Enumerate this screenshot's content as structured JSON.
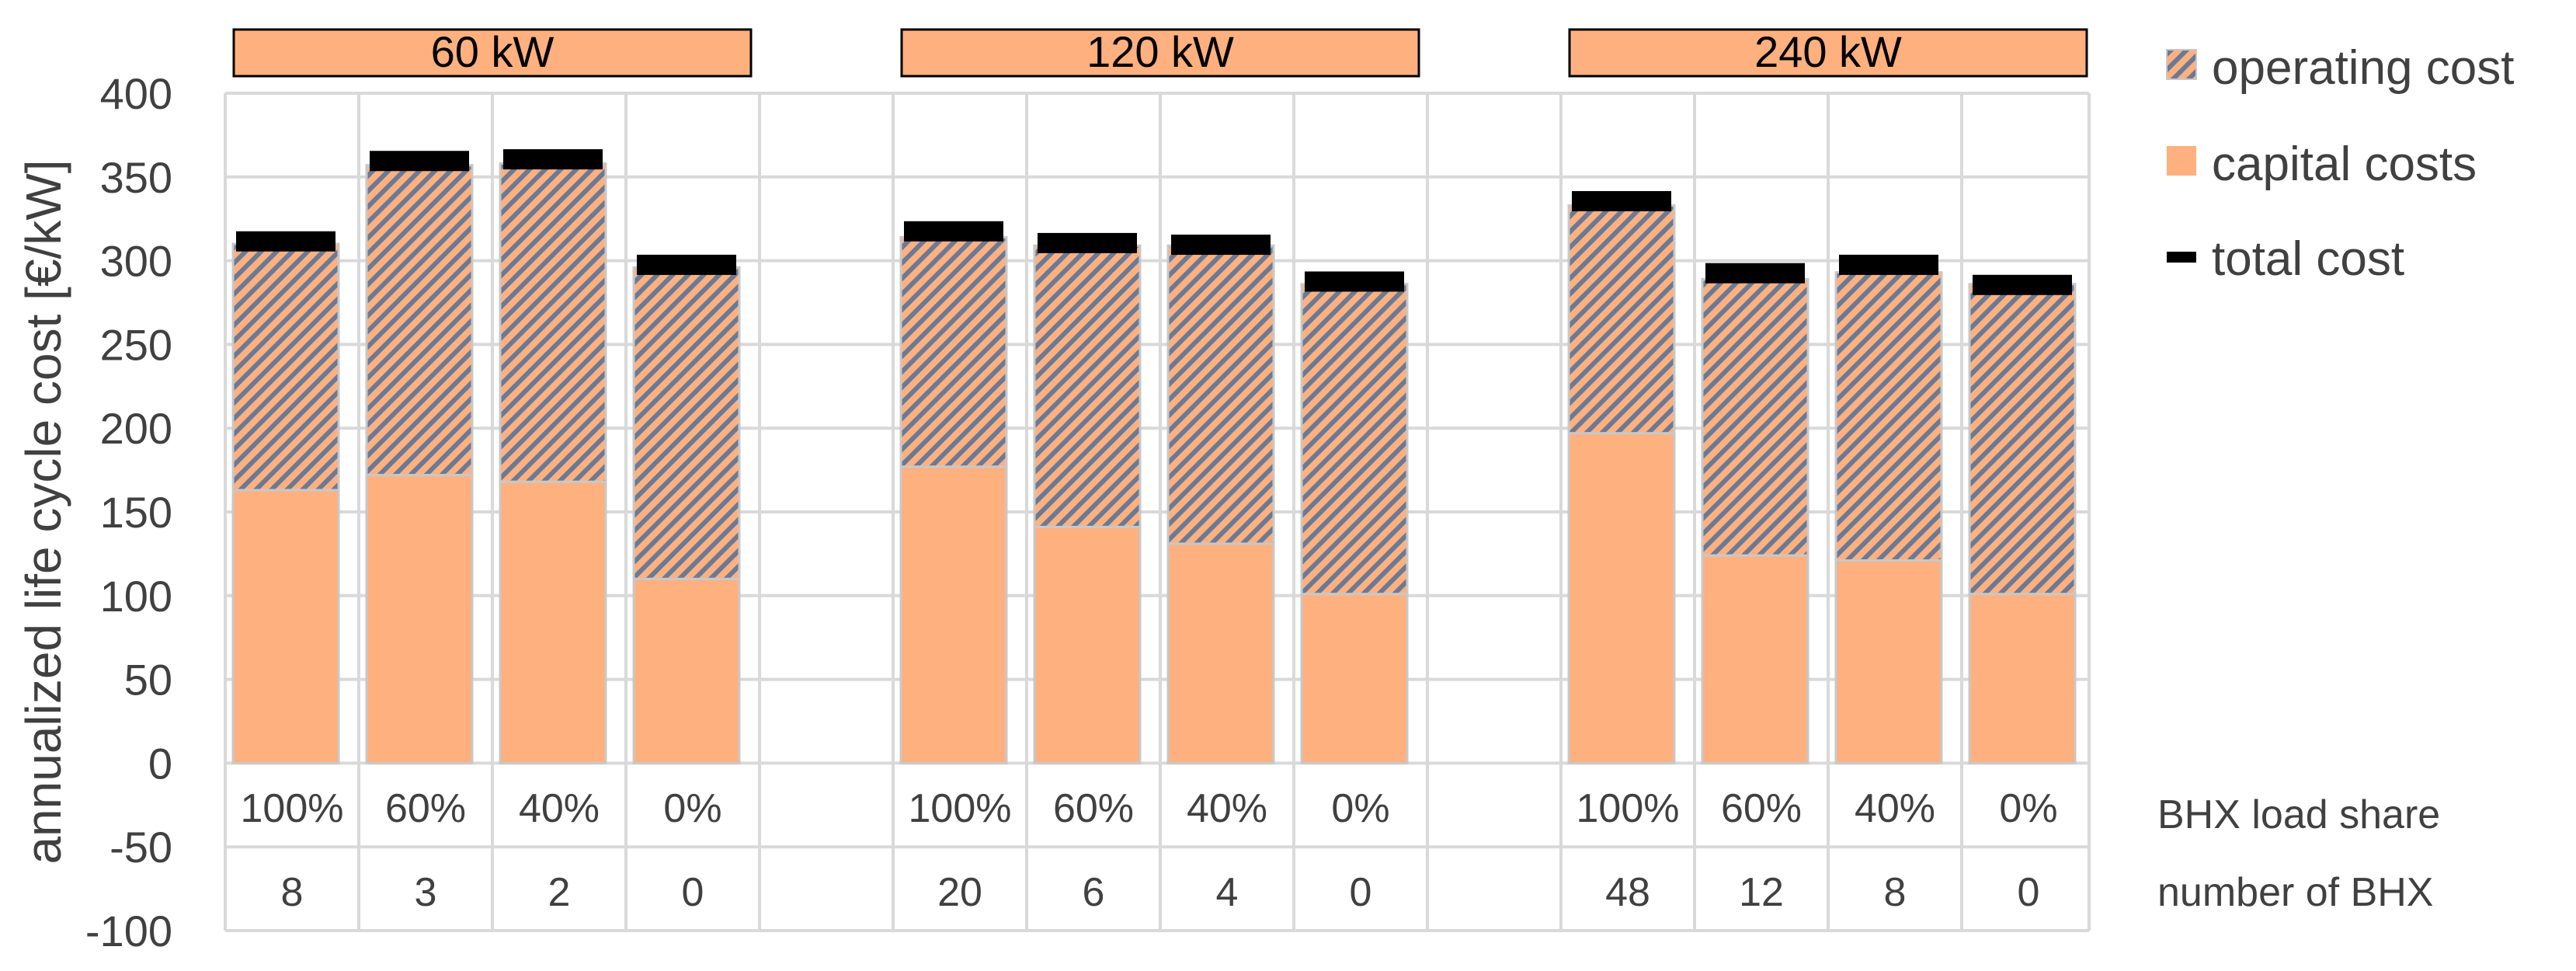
{
  "chart_data": {
    "type": "bar",
    "stacked": true,
    "ylabel": "annualized life cycle cost [€/kW]",
    "ylim": [
      -100,
      400
    ],
    "ytick_step": 50,
    "yticks": [
      "400",
      "350",
      "300",
      "250",
      "200",
      "150",
      "100",
      "50",
      "0",
      "-50",
      "-100"
    ],
    "grid": true,
    "legend_position": "right",
    "colors": {
      "capital": "#FFB07F",
      "operating_hatch": "#6A7A96",
      "total_marker": "#000000",
      "group_header": "#FFB07F",
      "grid": "#D9D9D9",
      "bar_border": "#C8C8C8"
    },
    "legend": [
      {
        "key": "operating",
        "label": "operating cost"
      },
      {
        "key": "capital",
        "label": "capital costs"
      },
      {
        "key": "total",
        "label": "total cost"
      }
    ],
    "row_labels": [
      "BHX load share",
      "number of BHX"
    ],
    "groups": [
      {
        "label": "60 kW",
        "categories": [
          "100%",
          "60%",
          "40%",
          "0%"
        ],
        "bhx_count": [
          "8",
          "3",
          "2",
          "0"
        ],
        "capital": [
          163,
          172,
          168,
          110
        ],
        "operating": [
          147,
          185,
          190,
          186
        ],
        "total": [
          312,
          360,
          361,
          298
        ]
      },
      {
        "label": "120 kW",
        "categories": [
          "100%",
          "60%",
          "40%",
          "0%"
        ],
        "bhx_count": [
          "20",
          "6",
          "4",
          "0"
        ],
        "capital": [
          177,
          141,
          131,
          101
        ],
        "operating": [
          137,
          168,
          178,
          185
        ],
        "total": [
          318,
          311,
          310,
          288
        ]
      },
      {
        "label": "240 kW",
        "categories": [
          "100%",
          "60%",
          "40%",
          "0%"
        ],
        "bhx_count": [
          "48",
          "12",
          "8",
          "0"
        ],
        "capital": [
          197,
          124,
          121,
          101
        ],
        "operating": [
          136,
          165,
          172,
          185
        ],
        "total": [
          336,
          293,
          298,
          286
        ]
      }
    ]
  }
}
